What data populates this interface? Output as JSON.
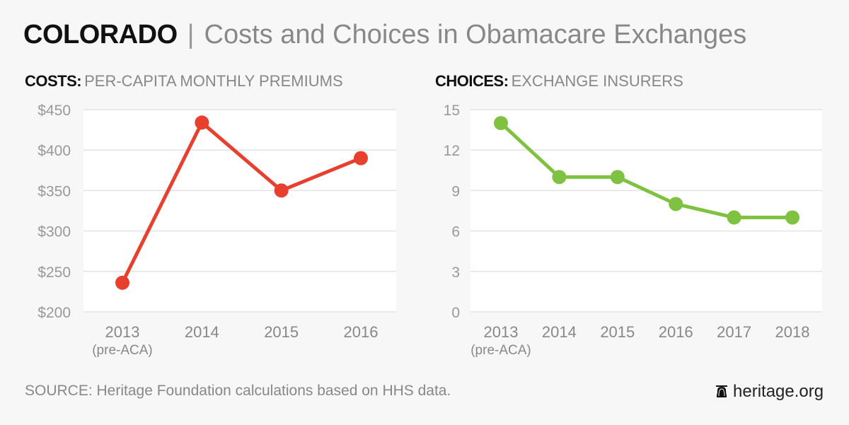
{
  "header": {
    "state": "COLORADO",
    "separator": "|",
    "subtitle": "Costs and Choices in Obamacare Exchanges"
  },
  "footer": {
    "source": "SOURCE: Heritage Foundation calculations based on HHS data.",
    "brand": "heritage.org",
    "brand_icon": "liberty-bell-icon"
  },
  "chart_data": [
    {
      "type": "line",
      "title_bold": "COSTS:",
      "title_rest": "PER-CAPITA MONTHLY PREMIUMS",
      "categories": [
        "2013",
        "2014",
        "2015",
        "2016"
      ],
      "category_sublabels": [
        "(pre-ACA)",
        "",
        "",
        ""
      ],
      "values": [
        236,
        434,
        350,
        390
      ],
      "ylim": [
        200,
        450
      ],
      "yticks": [
        200,
        250,
        300,
        350,
        400,
        450
      ],
      "ytick_labels": [
        "$200",
        "$250",
        "$300",
        "$350",
        "$400",
        "$450"
      ],
      "color": "#e8402f",
      "grid": true,
      "xlabel": "",
      "ylabel": ""
    },
    {
      "type": "line",
      "title_bold": "CHOICES:",
      "title_rest": "EXCHANGE INSURERS",
      "categories": [
        "2013",
        "2014",
        "2015",
        "2016",
        "2017",
        "2018"
      ],
      "category_sublabels": [
        "(pre-ACA)",
        "",
        "",
        "",
        "",
        ""
      ],
      "values": [
        14,
        10,
        10,
        8,
        7,
        7
      ],
      "ylim": [
        0,
        15
      ],
      "yticks": [
        0,
        3,
        6,
        9,
        12,
        15
      ],
      "ytick_labels": [
        "0",
        "3",
        "6",
        "9",
        "12",
        "15"
      ],
      "color": "#7fc241",
      "grid": true,
      "xlabel": "",
      "ylabel": ""
    }
  ]
}
